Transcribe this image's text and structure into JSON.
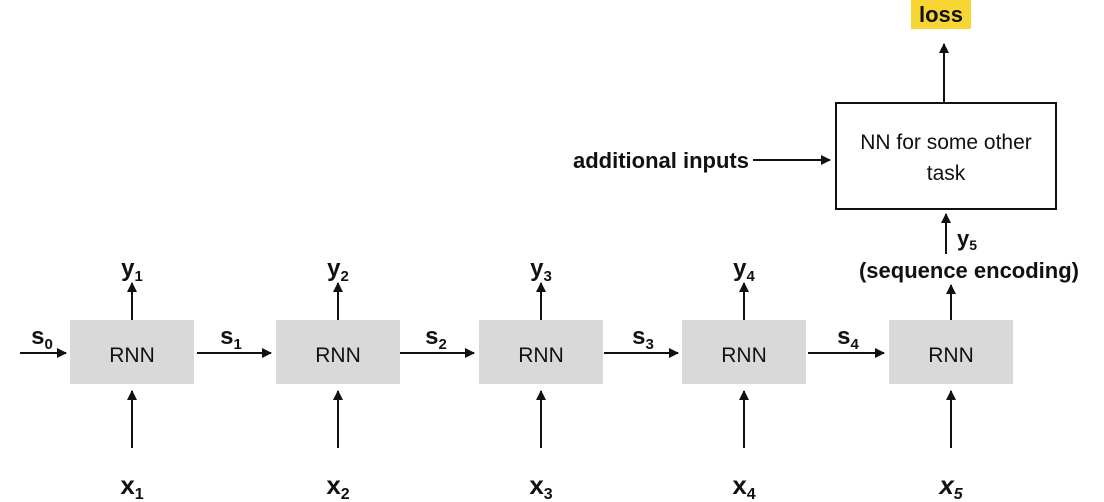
{
  "rnn_cells": [
    {
      "label": "RNN",
      "input": "x",
      "input_sub": "1",
      "output": "y",
      "output_sub": "1"
    },
    {
      "label": "RNN",
      "input": "x",
      "input_sub": "2",
      "output": "y",
      "output_sub": "2"
    },
    {
      "label": "RNN",
      "input": "x",
      "input_sub": "3",
      "output": "y",
      "output_sub": "3"
    },
    {
      "label": "RNN",
      "input": "x",
      "input_sub": "4",
      "output": "y",
      "output_sub": "4"
    },
    {
      "label": "RNN",
      "input": "x",
      "input_sub": "5",
      "output": "",
      "output_sub": ""
    }
  ],
  "states": [
    {
      "name": "s",
      "sub": "0"
    },
    {
      "name": "s",
      "sub": "1"
    },
    {
      "name": "s",
      "sub": "2"
    },
    {
      "name": "s",
      "sub": "3"
    },
    {
      "name": "s",
      "sub": "4"
    }
  ],
  "final_output": {
    "name": "y",
    "sub": "5",
    "caption": "(sequence encoding)"
  },
  "task_network": {
    "line1": "NN for some other",
    "line2": "task"
  },
  "additional_inputs": "additional inputs",
  "loss": {
    "label": "loss",
    "highlight": "#f7d633"
  }
}
